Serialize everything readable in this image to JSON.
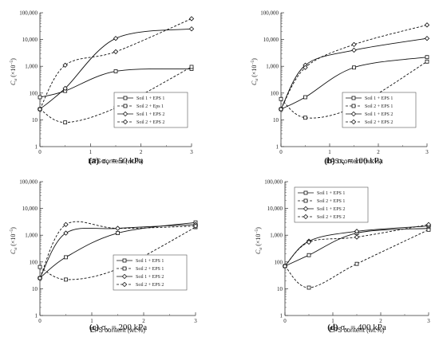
{
  "chart_data": [
    {
      "type": "line",
      "caption_letter": "(a)",
      "caption_sigma": "σ",
      "caption_sub": "v",
      "caption_value": " = 50 kPa",
      "xlabel": "EPS content (wt.%)",
      "ylabel_main": "C",
      "ylabel_sub": "α",
      "ylabel_unit": "(×10",
      "ylabel_exp": "−5",
      "ylabel_close": ")",
      "xlim": [
        0,
        3
      ],
      "ylim": [
        1,
        100000
      ],
      "yscale": "log",
      "x_ticks": [
        "0",
        "1",
        "2",
        "3"
      ],
      "y_ticks": [
        "1",
        "10",
        "100",
        "1,000",
        "10,000",
        "100,000"
      ],
      "legend_position": "bottom-right",
      "series": [
        {
          "name": "Soil 1 + EPS 1",
          "marker": "square",
          "dash": "solid",
          "x": [
            0,
            0.5,
            1.5,
            3
          ],
          "y": [
            70,
            120,
            650,
            800
          ]
        },
        {
          "name": "Soil 2 + Eps 1",
          "marker": "square",
          "dash": "dashed",
          "x": [
            0,
            0.5,
            1.5,
            3
          ],
          "y": [
            25,
            8,
            28,
            950
          ]
        },
        {
          "name": "Soil 1 + EPS 2",
          "marker": "diamond",
          "dash": "solid",
          "x": [
            0,
            0.5,
            1.5,
            3
          ],
          "y": [
            25,
            150,
            11000,
            25000
          ]
        },
        {
          "name": "Soil 2 + EPS 2",
          "marker": "diamond",
          "dash": "dashed",
          "x": [
            0,
            0.5,
            1.5,
            3
          ],
          "y": [
            25,
            1100,
            3500,
            60000
          ]
        }
      ]
    },
    {
      "type": "line",
      "caption_letter": "(b)",
      "caption_sigma": "σ",
      "caption_sub": "v",
      "caption_value": " = 100 kPa",
      "xlabel": "EPS content (wt.%)",
      "ylabel_main": "C",
      "ylabel_sub": "α",
      "ylabel_unit": "(×10",
      "ylabel_exp": "−5",
      "ylabel_close": ")",
      "xlim": [
        0,
        3
      ],
      "ylim": [
        1,
        100000
      ],
      "yscale": "log",
      "x_ticks": [
        "0",
        "1",
        "2",
        "3"
      ],
      "y_ticks": [
        "1",
        "10",
        "100",
        "1,000",
        "10,000",
        "100,000"
      ],
      "legend_position": "bottom-right",
      "series": [
        {
          "name": "Soil 1 + EPS 1",
          "marker": "square",
          "dash": "solid",
          "x": [
            0,
            0.5,
            1.5,
            3
          ],
          "y": [
            25,
            70,
            900,
            2200
          ]
        },
        {
          "name": "Soil 2 + EPS 1",
          "marker": "square",
          "dash": "dashed",
          "x": [
            0,
            0.5,
            1.5,
            3
          ],
          "y": [
            60,
            12,
            30,
            1500
          ]
        },
        {
          "name": "Soil 1 + EPS 2",
          "marker": "diamond",
          "dash": "solid",
          "x": [
            0,
            0.5,
            1.5,
            3
          ],
          "y": [
            25,
            1100,
            4000,
            11000
          ]
        },
        {
          "name": "Soil 2 + EPS 2",
          "marker": "diamond",
          "dash": "dashed",
          "x": [
            0,
            0.5,
            1.5,
            3
          ],
          "y": [
            25,
            900,
            6500,
            35000
          ]
        }
      ]
    },
    {
      "type": "line",
      "caption_letter": "(c)",
      "caption_sigma": "σ",
      "caption_sub": "v",
      "caption_value": " = 200 kPa",
      "xlabel": "EPS content (wt.%)",
      "ylabel_main": "C",
      "ylabel_sub": "α",
      "ylabel_unit": "(×10",
      "ylabel_exp": "−5",
      "ylabel_close": ")",
      "xlim": [
        0,
        3
      ],
      "ylim": [
        1,
        100000
      ],
      "yscale": "log",
      "x_ticks": [
        "0",
        "1",
        "2",
        "3"
      ],
      "y_ticks": [
        "1",
        "10",
        "100",
        "1,000",
        "10,000",
        "100,000"
      ],
      "legend_position": "bottom-right",
      "series": [
        {
          "name": "Soil 1 + EPS 1",
          "marker": "square",
          "dash": "solid",
          "x": [
            0,
            0.5,
            1.5,
            3
          ],
          "y": [
            25,
            150,
            1200,
            3000
          ]
        },
        {
          "name": "Soil 2 + EPS 1",
          "marker": "square",
          "dash": "dashed",
          "x": [
            0,
            0.5,
            1.5,
            3
          ],
          "y": [
            65,
            22,
            55,
            2000
          ]
        },
        {
          "name": "Soil 1 + EPS 2",
          "marker": "diamond",
          "dash": "solid",
          "x": [
            0,
            0.5,
            1.5,
            3
          ],
          "y": [
            25,
            1200,
            1800,
            2500
          ]
        },
        {
          "name": "Soil 2 + EPS 2",
          "marker": "diamond",
          "dash": "dashed",
          "x": [
            0,
            0.5,
            1.5,
            3
          ],
          "y": [
            25,
            2500,
            1800,
            2200
          ]
        }
      ]
    },
    {
      "type": "line",
      "caption_letter": "(d)",
      "caption_sigma": "σ",
      "caption_sub": "v",
      "caption_value": " = 400 kPa",
      "xlabel": "EPS content (wt.%)",
      "ylabel_main": "C",
      "ylabel_sub": "α",
      "ylabel_unit": "(×10",
      "ylabel_exp": "−5",
      "ylabel_close": ")",
      "xlim": [
        0,
        3
      ],
      "ylim": [
        1,
        100000
      ],
      "yscale": "log",
      "x_ticks": [
        "0",
        "1",
        "2",
        "3"
      ],
      "y_ticks": [
        "1",
        "10",
        "100",
        "1,000",
        "10,000",
        "100,000"
      ],
      "legend_position": "top-left",
      "series": [
        {
          "name": "Soil 1 + EPS 1",
          "marker": "square",
          "dash": "solid",
          "x": [
            0,
            0.5,
            1.5,
            3
          ],
          "y": [
            70,
            180,
            1200,
            1800
          ]
        },
        {
          "name": "Soil 2 + EPS 1",
          "marker": "square",
          "dash": "dashed",
          "x": [
            0,
            0.5,
            1.5,
            3
          ],
          "y": [
            70,
            11,
            85,
            1600
          ]
        },
        {
          "name": "Soil 1 + EPS 2",
          "marker": "diamond",
          "dash": "solid",
          "x": [
            0,
            0.5,
            1.5,
            3
          ],
          "y": [
            70,
            600,
            1400,
            2200
          ]
        },
        {
          "name": "Soil 2 + EPS 2",
          "marker": "diamond",
          "dash": "dashed",
          "x": [
            0,
            0.5,
            1.5,
            3
          ],
          "y": [
            70,
            550,
            850,
            2500
          ]
        }
      ]
    }
  ]
}
